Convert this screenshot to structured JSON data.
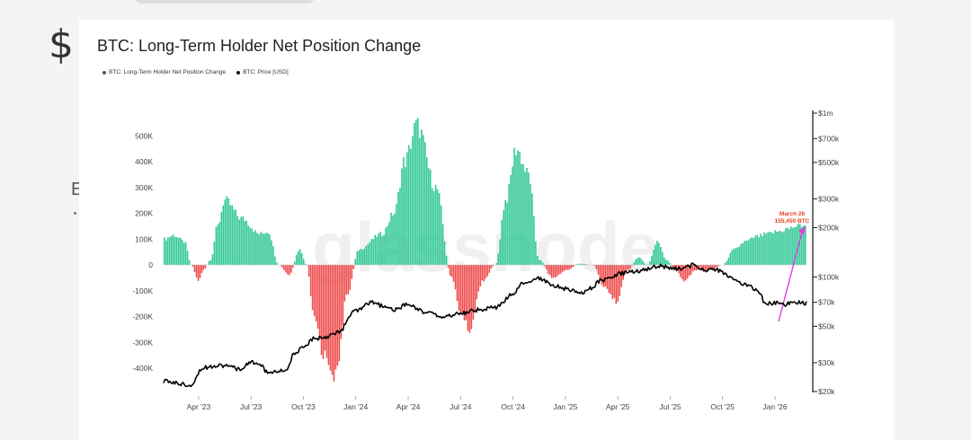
{
  "page": {
    "symbol": "$",
    "side_letter": "E"
  },
  "chart_data": {
    "type": "bar",
    "title": "BTC: Long-Term Holder Net Position Change",
    "legend": [
      {
        "label": "BTC: Long-Term Holder Net Position Change",
        "color": "#555555"
      },
      {
        "label": "BTC: Price [USD]",
        "color": "#111111"
      }
    ],
    "watermark": "glassnode",
    "x_ticks": [
      "Apr '23",
      "Jul '23",
      "Oct '23",
      "Jan '24",
      "Apr '24",
      "Jul '24",
      "Oct '24",
      "Jan '25",
      "Apr '25",
      "Jul '25",
      "Oct '25",
      "Jan '26"
    ],
    "x_range": [
      "Feb '23",
      "Mar '26"
    ],
    "y_left": {
      "ticks": [
        {
          "value": 500000,
          "label": "500K"
        },
        {
          "value": 400000,
          "label": "400K"
        },
        {
          "value": 300000,
          "label": "300K"
        },
        {
          "value": 200000,
          "label": "200K"
        },
        {
          "value": 100000,
          "label": "100K"
        },
        {
          "value": 0,
          "label": "0"
        },
        {
          "value": -100000,
          "label": "-100K"
        },
        {
          "value": -200000,
          "label": "-200K"
        },
        {
          "value": -300000,
          "label": "-300K"
        },
        {
          "value": -400000,
          "label": "-400K"
        }
      ],
      "ylim": [
        -500000,
        600000
      ]
    },
    "y_right": {
      "scale": "log",
      "ticks": [
        {
          "value": 1000000,
          "label": "$1m"
        },
        {
          "value": 700000,
          "label": "$700k"
        },
        {
          "value": 500000,
          "label": "$500k"
        },
        {
          "value": 300000,
          "label": "$300k"
        },
        {
          "value": 200000,
          "label": "$200k"
        },
        {
          "value": 100000,
          "label": "$100k"
        },
        {
          "value": 70000,
          "label": "$70k"
        },
        {
          "value": 50000,
          "label": "$50k"
        },
        {
          "value": 30000,
          "label": "$30k"
        },
        {
          "value": 20000,
          "label": "$20k"
        }
      ],
      "ylim": [
        20000,
        1000000
      ]
    },
    "net_position_keypoints": {
      "t_months": [
        0,
        0.6,
        1.2,
        1.6,
        2.0,
        2.3,
        2.7,
        3.1,
        3.5,
        4.5,
        5.5,
        6.0,
        6.6,
        7.2,
        7.8,
        8.2,
        8.6,
        9.2,
        9.9,
        10.5,
        11.2,
        12.5,
        13.2,
        13.8,
        14.5,
        15.6,
        16.5,
        17.0,
        17.5,
        18.3,
        19.0,
        19.6,
        20.2,
        20.9,
        21.5,
        22.3,
        23.1,
        23.8,
        24.6,
        25.2,
        25.9,
        26.6,
        27.2,
        27.7,
        28.3,
        28.8,
        29.3,
        29.8,
        30.5,
        31.3,
        32.0,
        32.7,
        33.3,
        34.0,
        34.6,
        35.2,
        35.8,
        36.2,
        36.8
      ],
      "values": [
        100000,
        115000,
        90000,
        0,
        -60000,
        -20000,
        20000,
        150000,
        250000,
        180000,
        120000,
        130000,
        0,
        -40000,
        60000,
        0,
        -200000,
        -350000,
        -430000,
        -120000,
        60000,
        120000,
        200000,
        400000,
        540000,
        300000,
        -50000,
        -180000,
        -250000,
        -60000,
        0,
        250000,
        450000,
        350000,
        20000,
        -50000,
        -20000,
        5000,
        0,
        -80000,
        -140000,
        -20000,
        30000,
        0,
        90000,
        20000,
        -20000,
        -60000,
        -20000,
        -20000,
        0,
        60000,
        90000,
        110000,
        120000,
        130000,
        140000,
        150000,
        155450
      ]
    },
    "price_keypoints": {
      "t_months": [
        0,
        1.5,
        2.3,
        3.1,
        4.5,
        5.0,
        5.5,
        6.0,
        6.5,
        7.0,
        7.5,
        8.0,
        8.6,
        9.2,
        10.0,
        11.0,
        12.0,
        12.6,
        13.2,
        14.0,
        15.0,
        16.0,
        17.0,
        18.0,
        19.0,
        20.0,
        20.6,
        21.4,
        22.5,
        23.0,
        23.5,
        24.0,
        24.5,
        25.0,
        25.6,
        26.2,
        26.8,
        27.4,
        28.0,
        28.5,
        29.0,
        29.6,
        30.3,
        31.0,
        31.8,
        32.5,
        33.0,
        33.5,
        34.0,
        34.5,
        35.0,
        35.5,
        36.0,
        36.8
      ],
      "values": [
        23000,
        22000,
        28000,
        29000,
        27500,
        30500,
        29000,
        26000,
        26500,
        27000,
        34000,
        37000,
        42000,
        43000,
        46000,
        62000,
        70000,
        66000,
        63000,
        68000,
        61000,
        57000,
        60000,
        63000,
        65000,
        78000,
        92000,
        98000,
        88000,
        85000,
        82000,
        80000,
        86000,
        95000,
        100000,
        105000,
        108000,
        110000,
        115000,
        117000,
        112000,
        113000,
        118000,
        110000,
        110000,
        98000,
        92000,
        88000,
        82000,
        68000,
        70000,
        68000,
        70000,
        69000
      ]
    },
    "annotation": {
      "line1": "March 26",
      "line2": "155,450 BTC",
      "color": "#e0401f"
    },
    "colors": {
      "positive": "#2ec795",
      "negative": "#ef4b4b",
      "price": "#000000",
      "trend": "#e13fe0"
    }
  }
}
